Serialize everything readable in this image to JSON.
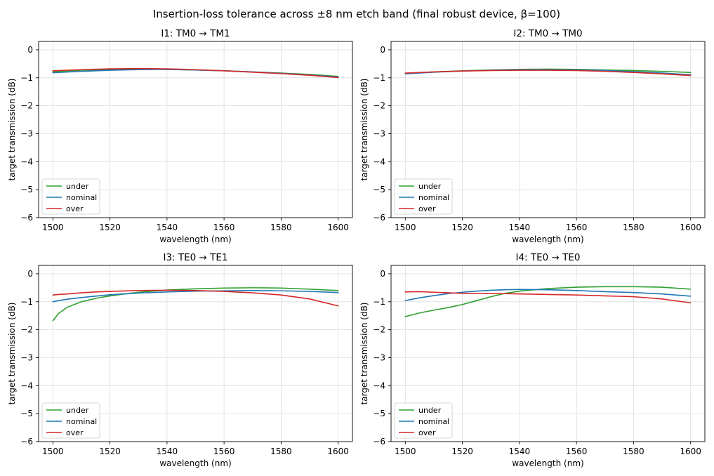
{
  "figure": {
    "title": "Insertion-loss tolerance across ±8 nm etch band (final robust device, β=100)"
  },
  "chart_data": [
    {
      "type": "line",
      "title": "I1: TM0 → TM1",
      "xlabel": "wavelength (nm)",
      "ylabel": "target transmission (dB)",
      "xlim": [
        1495,
        1605
      ],
      "ylim": [
        -6,
        0.3
      ],
      "xticks": [
        1500,
        1520,
        1540,
        1560,
        1580,
        1600
      ],
      "yticks": [
        0,
        -1,
        -2,
        -3,
        -4,
        -5,
        -6
      ],
      "grid": true,
      "legend": "lower-left",
      "x": [
        1500,
        1510,
        1520,
        1530,
        1540,
        1550,
        1560,
        1570,
        1580,
        1590,
        1600
      ],
      "series": [
        {
          "name": "under",
          "color": "#2ca02c",
          "values": [
            -0.78,
            -0.73,
            -0.7,
            -0.69,
            -0.7,
            -0.72,
            -0.75,
            -0.79,
            -0.83,
            -0.88,
            -0.95
          ]
        },
        {
          "name": "nominal",
          "color": "#1f77b4",
          "values": [
            -0.82,
            -0.77,
            -0.73,
            -0.71,
            -0.7,
            -0.72,
            -0.75,
            -0.79,
            -0.84,
            -0.9,
            -0.97
          ]
        },
        {
          "name": "over",
          "color": "#d62728",
          "values": [
            -0.75,
            -0.71,
            -0.68,
            -0.67,
            -0.68,
            -0.71,
            -0.75,
            -0.8,
            -0.85,
            -0.91,
            -0.99
          ]
        }
      ]
    },
    {
      "type": "line",
      "title": "I2: TM0 → TM0",
      "xlabel": "wavelength (nm)",
      "ylabel": "target transmission (dB)",
      "xlim": [
        1495,
        1605
      ],
      "ylim": [
        -6,
        0.3
      ],
      "xticks": [
        1500,
        1520,
        1540,
        1560,
        1580,
        1600
      ],
      "yticks": [
        0,
        -1,
        -2,
        -3,
        -4,
        -5,
        -6
      ],
      "grid": true,
      "legend": "lower-left",
      "x": [
        1500,
        1510,
        1520,
        1530,
        1540,
        1550,
        1560,
        1570,
        1580,
        1590,
        1600
      ],
      "series": [
        {
          "name": "under",
          "color": "#2ca02c",
          "values": [
            -0.84,
            -0.79,
            -0.75,
            -0.72,
            -0.7,
            -0.69,
            -0.7,
            -0.72,
            -0.74,
            -0.77,
            -0.81
          ]
        },
        {
          "name": "nominal",
          "color": "#1f77b4",
          "values": [
            -0.86,
            -0.8,
            -0.76,
            -0.73,
            -0.71,
            -0.71,
            -0.72,
            -0.74,
            -0.78,
            -0.83,
            -0.89
          ]
        },
        {
          "name": "over",
          "color": "#d62728",
          "values": [
            -0.83,
            -0.79,
            -0.76,
            -0.74,
            -0.73,
            -0.73,
            -0.74,
            -0.77,
            -0.81,
            -0.86,
            -0.92
          ]
        }
      ]
    },
    {
      "type": "line",
      "title": "I3: TE0 → TE1",
      "xlabel": "wavelength (nm)",
      "ylabel": "target transmission (dB)",
      "xlim": [
        1495,
        1605
      ],
      "ylim": [
        -6,
        0.3
      ],
      "xticks": [
        1500,
        1520,
        1540,
        1560,
        1580,
        1600
      ],
      "yticks": [
        0,
        -1,
        -2,
        -3,
        -4,
        -5,
        -6
      ],
      "grid": true,
      "legend": "lower-left",
      "x": [
        1500,
        1502,
        1505,
        1510,
        1515,
        1520,
        1530,
        1540,
        1550,
        1560,
        1570,
        1580,
        1590,
        1600
      ],
      "series": [
        {
          "name": "under",
          "color": "#2ca02c",
          "values": [
            -1.68,
            -1.42,
            -1.2,
            -1.0,
            -0.88,
            -0.79,
            -0.66,
            -0.58,
            -0.54,
            -0.51,
            -0.5,
            -0.51,
            -0.55,
            -0.6
          ]
        },
        {
          "name": "nominal",
          "color": "#1f77b4",
          "values": [
            -1.0,
            -0.96,
            -0.91,
            -0.85,
            -0.8,
            -0.75,
            -0.69,
            -0.65,
            -0.62,
            -0.61,
            -0.6,
            -0.61,
            -0.63,
            -0.67
          ]
        },
        {
          "name": "over",
          "color": "#d62728",
          "values": [
            -0.76,
            -0.74,
            -0.72,
            -0.68,
            -0.65,
            -0.63,
            -0.6,
            -0.59,
            -0.6,
            -0.63,
            -0.68,
            -0.76,
            -0.9,
            -1.15
          ]
        }
      ]
    },
    {
      "type": "line",
      "title": "I4: TE0 → TE0",
      "xlabel": "wavelength (nm)",
      "ylabel": "target transmission (dB)",
      "xlim": [
        1495,
        1605
      ],
      "ylim": [
        -6,
        0.3
      ],
      "xticks": [
        1500,
        1520,
        1540,
        1560,
        1580,
        1600
      ],
      "yticks": [
        0,
        -1,
        -2,
        -3,
        -4,
        -5,
        -6
      ],
      "grid": true,
      "legend": "lower-left",
      "x": [
        1500,
        1505,
        1510,
        1515,
        1520,
        1525,
        1530,
        1535,
        1540,
        1550,
        1560,
        1570,
        1580,
        1590,
        1600
      ],
      "series": [
        {
          "name": "under",
          "color": "#2ca02c",
          "values": [
            -1.53,
            -1.4,
            -1.3,
            -1.21,
            -1.1,
            -0.96,
            -0.82,
            -0.7,
            -0.62,
            -0.53,
            -0.48,
            -0.46,
            -0.46,
            -0.48,
            -0.55
          ]
        },
        {
          "name": "nominal",
          "color": "#1f77b4",
          "values": [
            -0.96,
            -0.86,
            -0.78,
            -0.71,
            -0.66,
            -0.62,
            -0.59,
            -0.57,
            -0.56,
            -0.57,
            -0.6,
            -0.64,
            -0.67,
            -0.72,
            -0.8
          ]
        },
        {
          "name": "over",
          "color": "#d62728",
          "values": [
            -0.65,
            -0.64,
            -0.66,
            -0.68,
            -0.7,
            -0.71,
            -0.71,
            -0.71,
            -0.72,
            -0.74,
            -0.76,
            -0.79,
            -0.82,
            -0.9,
            -1.04
          ]
        }
      ]
    }
  ]
}
